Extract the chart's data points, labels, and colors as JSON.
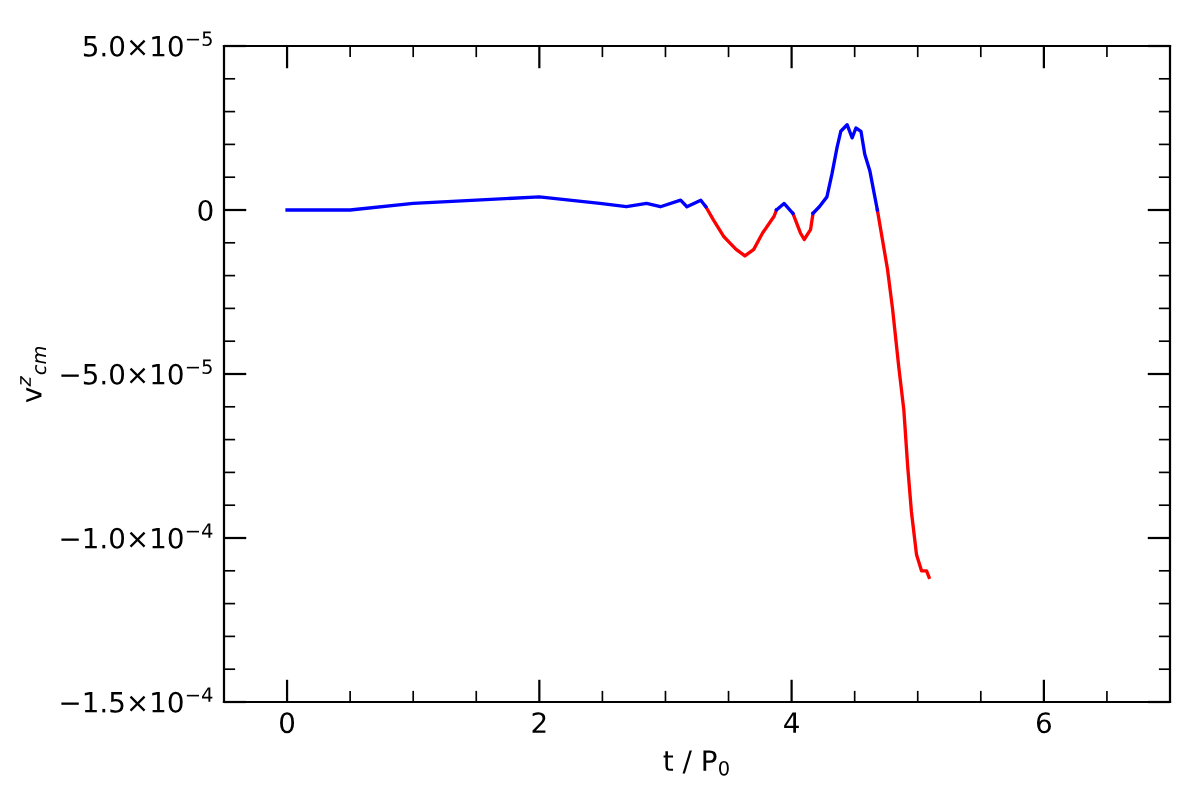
{
  "chart_data": {
    "type": "line",
    "xlabel": "t / P$_{0}$",
    "ylabel": "v$^{z}$$_{cm}$",
    "xlim": [
      -0.5,
      7
    ],
    "xticks": [
      0,
      2,
      4,
      6
    ],
    "ylim": [
      -0.00015,
      5e-05
    ],
    "yticks": [
      {
        "value": -0.00015,
        "label": "−1.5×10$^{−4}$"
      },
      {
        "value": -0.0001,
        "label": "−1.0×10$^{−4}$"
      },
      {
        "value": -5e-05,
        "label": "−5.0×10$^{−5}$"
      },
      0,
      {
        "value": 5e-05,
        "label": "5.0×10$^{−5}$"
      }
    ],
    "grid": false,
    "marker": "none",
    "line_style": "solid",
    "series": [
      {
        "color": "#0000ff",
        "x": [
          0,
          0.5,
          1.0,
          1.5,
          2.0,
          2.48,
          2.69,
          2.85,
          2.96,
          3.12,
          3.17,
          3.28,
          3.32,
          3.6,
          3.88,
          3.94,
          4.01,
          4.1,
          4.17,
          4.22,
          4.28,
          4.32,
          4.36,
          4.39,
          4.44,
          4.48,
          4.51,
          4.55,
          4.58,
          4.62,
          4.65,
          4.68
        ],
        "values": [
          0,
          0,
          2e-06,
          3e-06,
          4e-06,
          2e-06,
          1e-06,
          2e-06,
          1e-06,
          3e-06,
          1e-06,
          3e-06,
          1e-06,
          null,
          0,
          2e-06,
          -1e-06,
          null,
          -1e-06,
          1e-06,
          4e-06,
          1.1e-05,
          1.9e-05,
          2.4e-05,
          2.6e-05,
          2.2e-05,
          2.5e-05,
          2.4e-05,
          1.7e-05,
          1.2e-05,
          6e-06,
          0
        ]
      },
      {
        "color": "#ff0000",
        "x": [
          3.32,
          3.38,
          3.46,
          3.51,
          3.56,
          3.63,
          3.7,
          3.77,
          3.86,
          3.88,
          3.95,
          4.01,
          4.04,
          4.07,
          4.1,
          4.15,
          4.17,
          4.4,
          4.68,
          4.72,
          4.76,
          4.8,
          4.85,
          4.89,
          4.92,
          4.95,
          4.99,
          5.03,
          5.07,
          5.09
        ],
        "values": [
          1e-06,
          -3e-06,
          -8e-06,
          -1e-05,
          -1.2e-05,
          -1.4e-05,
          -1.2e-05,
          -7e-06,
          -2e-06,
          0,
          null,
          -1e-06,
          -4e-06,
          -7e-06,
          -9e-06,
          -6e-06,
          -1e-06,
          null,
          0,
          -9e-06,
          -1.8e-05,
          -3e-05,
          -4.8e-05,
          -6.1e-05,
          -7.8e-05,
          -9.2e-05,
          -0.000105,
          -0.00011,
          -0.00011,
          -0.000112
        ]
      }
    ]
  }
}
